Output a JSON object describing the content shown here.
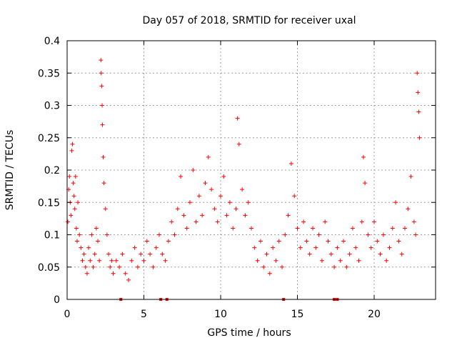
{
  "chart_data": {
    "type": "scatter",
    "title": "Day 057 of 2018, SRMTID for receiver uxal",
    "xlabel": "GPS time / hours",
    "ylabel": "SRMTID / TECUs",
    "xlim": [
      0,
      24
    ],
    "ylim": [
      0,
      0.4
    ],
    "xticks": [
      0,
      5,
      10,
      15,
      20
    ],
    "xtick_labels": [
      "0",
      "5",
      "10",
      "15",
      "20"
    ],
    "yticks": [
      0,
      0.05,
      0.1,
      0.15,
      0.2,
      0.25,
      0.3,
      0.35,
      0.4
    ],
    "ytick_labels": [
      "0",
      "0.05",
      "0.1",
      "0.15",
      "0.2",
      "0.25",
      "0.3",
      "0.35",
      "0.4"
    ],
    "grid": true,
    "marker": "+",
    "series_color": "#ff0000",
    "series": [
      {
        "name": "SRMTID",
        "points": [
          [
            0.05,
            0.12
          ],
          [
            0.1,
            0.17
          ],
          [
            0.15,
            0.19
          ],
          [
            0.2,
            0.15
          ],
          [
            0.25,
            0.13
          ],
          [
            0.3,
            0.23
          ],
          [
            0.35,
            0.24
          ],
          [
            0.4,
            0.18
          ],
          [
            0.45,
            0.16
          ],
          [
            0.5,
            0.14
          ],
          [
            0.55,
            0.19
          ],
          [
            0.6,
            0.11
          ],
          [
            0.65,
            0.09
          ],
          [
            0.7,
            0.15
          ],
          [
            0.8,
            0.1
          ],
          [
            0.9,
            0.08
          ],
          [
            1.0,
            0.06
          ],
          [
            1.1,
            0.07
          ],
          [
            1.2,
            0.05
          ],
          [
            1.3,
            0.04
          ],
          [
            1.4,
            0.08
          ],
          [
            1.5,
            0.06
          ],
          [
            1.6,
            0.1
          ],
          [
            1.7,
            0.05
          ],
          [
            1.8,
            0.07
          ],
          [
            1.9,
            0.11
          ],
          [
            2.0,
            0.09
          ],
          [
            2.1,
            0.06
          ],
          [
            2.2,
            0.37
          ],
          [
            2.22,
            0.35
          ],
          [
            2.25,
            0.33
          ],
          [
            2.28,
            0.3
          ],
          [
            2.3,
            0.27
          ],
          [
            2.35,
            0.22
          ],
          [
            2.4,
            0.18
          ],
          [
            2.5,
            0.14
          ],
          [
            2.6,
            0.1
          ],
          [
            2.7,
            0.07
          ],
          [
            2.8,
            0.05
          ],
          [
            2.9,
            0.06
          ],
          [
            3.0,
            0.04
          ],
          [
            3.2,
            0.06
          ],
          [
            3.4,
            0.05
          ],
          [
            3.6,
            0.07
          ],
          [
            3.8,
            0.04
          ],
          [
            4.0,
            0.03
          ],
          [
            4.2,
            0.06
          ],
          [
            4.4,
            0.08
          ],
          [
            4.6,
            0.05
          ],
          [
            4.8,
            0.07
          ],
          [
            5.0,
            0.06
          ],
          [
            5.2,
            0.09
          ],
          [
            5.4,
            0.07
          ],
          [
            5.6,
            0.05
          ],
          [
            5.8,
            0.08
          ],
          [
            6.0,
            0.1
          ],
          [
            6.2,
            0.07
          ],
          [
            6.4,
            0.06
          ],
          [
            6.6,
            0.09
          ],
          [
            6.8,
            0.12
          ],
          [
            7.0,
            0.1
          ],
          [
            7.2,
            0.14
          ],
          [
            7.4,
            0.19
          ],
          [
            7.6,
            0.13
          ],
          [
            7.8,
            0.11
          ],
          [
            8.0,
            0.15
          ],
          [
            8.2,
            0.2
          ],
          [
            8.4,
            0.12
          ],
          [
            8.6,
            0.16
          ],
          [
            8.8,
            0.13
          ],
          [
            9.0,
            0.18
          ],
          [
            9.2,
            0.22
          ],
          [
            9.4,
            0.17
          ],
          [
            9.6,
            0.14
          ],
          [
            9.8,
            0.12
          ],
          [
            10.0,
            0.16
          ],
          [
            10.2,
            0.19
          ],
          [
            10.4,
            0.13
          ],
          [
            10.6,
            0.15
          ],
          [
            10.8,
            0.11
          ],
          [
            11.0,
            0.14
          ],
          [
            11.1,
            0.28
          ],
          [
            11.2,
            0.24
          ],
          [
            11.4,
            0.17
          ],
          [
            11.6,
            0.13
          ],
          [
            11.8,
            0.15
          ],
          [
            12.0,
            0.11
          ],
          [
            12.2,
            0.08
          ],
          [
            12.4,
            0.06
          ],
          [
            12.6,
            0.09
          ],
          [
            12.8,
            0.05
          ],
          [
            13.0,
            0.07
          ],
          [
            13.2,
            0.04
          ],
          [
            13.4,
            0.08
          ],
          [
            13.6,
            0.06
          ],
          [
            13.8,
            0.09
          ],
          [
            14.0,
            0.05
          ],
          [
            14.2,
            0.1
          ],
          [
            14.4,
            0.13
          ],
          [
            14.6,
            0.21
          ],
          [
            14.8,
            0.16
          ],
          [
            15.0,
            0.11
          ],
          [
            15.2,
            0.08
          ],
          [
            15.4,
            0.12
          ],
          [
            15.6,
            0.09
          ],
          [
            15.8,
            0.07
          ],
          [
            16.0,
            0.11
          ],
          [
            16.2,
            0.08
          ],
          [
            16.4,
            0.1
          ],
          [
            16.6,
            0.06
          ],
          [
            16.8,
            0.12
          ],
          [
            17.0,
            0.09
          ],
          [
            17.2,
            0.07
          ],
          [
            17.4,
            0.05
          ],
          [
            17.6,
            0.08
          ],
          [
            17.8,
            0.06
          ],
          [
            18.0,
            0.09
          ],
          [
            18.2,
            0.05
          ],
          [
            18.4,
            0.07
          ],
          [
            18.6,
            0.11
          ],
          [
            18.8,
            0.08
          ],
          [
            19.0,
            0.06
          ],
          [
            19.2,
            0.12
          ],
          [
            19.3,
            0.22
          ],
          [
            19.4,
            0.18
          ],
          [
            19.6,
            0.1
          ],
          [
            19.8,
            0.08
          ],
          [
            20.0,
            0.12
          ],
          [
            20.2,
            0.09
          ],
          [
            20.4,
            0.07
          ],
          [
            20.6,
            0.1
          ],
          [
            20.8,
            0.06
          ],
          [
            21.0,
            0.08
          ],
          [
            21.2,
            0.11
          ],
          [
            21.4,
            0.15
          ],
          [
            21.6,
            0.09
          ],
          [
            21.8,
            0.07
          ],
          [
            22.0,
            0.11
          ],
          [
            22.2,
            0.14
          ],
          [
            22.4,
            0.19
          ],
          [
            22.6,
            0.12
          ],
          [
            22.7,
            0.1
          ],
          [
            22.8,
            0.35
          ],
          [
            22.85,
            0.32
          ],
          [
            22.9,
            0.29
          ],
          [
            22.95,
            0.25
          ]
        ]
      }
    ],
    "gap_marker_x": [
      3.5,
      6.1,
      6.5,
      14.1,
      17.4,
      17.6
    ],
    "gap_marker_y": 0
  }
}
